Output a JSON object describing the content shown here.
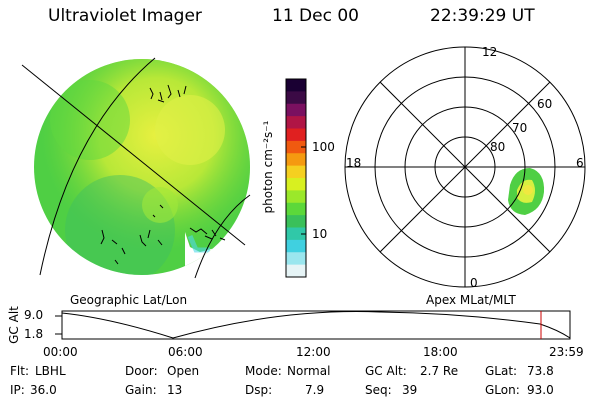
{
  "header": {
    "title": "Ultraviolet Imager",
    "date": "11 Dec 00",
    "time": "22:39:29 UT"
  },
  "left_panel": {
    "caption": "Geographic Lat/Lon"
  },
  "right_panel": {
    "caption": "Apex MLat/MLT",
    "clock_labels": {
      "top": "12",
      "left": "18",
      "right": "6",
      "bottom": "0"
    },
    "ring_labels": [
      "60",
      "70",
      "80"
    ]
  },
  "colorbar": {
    "unit_label": "photon cm⁻²s⁻¹",
    "tick_labels": [
      "100",
      "10"
    ],
    "colors": [
      "#1a0033",
      "#3b0a45",
      "#7a1060",
      "#b01545",
      "#e02020",
      "#f05a10",
      "#f59a10",
      "#f5d020",
      "#d8f020",
      "#9be82a",
      "#5cd83a",
      "#3ac05a",
      "#30c8a8",
      "#40d0e0",
      "#9ae6ee",
      "#e6f4f6"
    ]
  },
  "alt_plot": {
    "axis_label": "GC Alt",
    "y_ticks": [
      "9.0",
      "1.8"
    ],
    "x_ticks": [
      "00:00",
      "06:00",
      "12:00",
      "18:00",
      "23:59"
    ],
    "marker_color": "#cc0000"
  },
  "status": {
    "flt_label": "Flt:",
    "flt_value": "LBHL",
    "ip_label": "IP:",
    "ip_value": "36.0",
    "door_label": "Door:",
    "door_value": "Open",
    "gain_label": "Gain:",
    "gain_value": "13",
    "mode_label": "Mode:",
    "mode_value": "Normal",
    "dsp_label": "Dsp:",
    "dsp_value": "7.9",
    "gcalt_label": "GC Alt:",
    "gcalt_value": "2.7 Re",
    "seq_label": "Seq:",
    "seq_value": "39",
    "glat_label": "GLat:",
    "glat_value": "73.8",
    "glon_label": "GLon:",
    "glon_value": "93.0"
  }
}
